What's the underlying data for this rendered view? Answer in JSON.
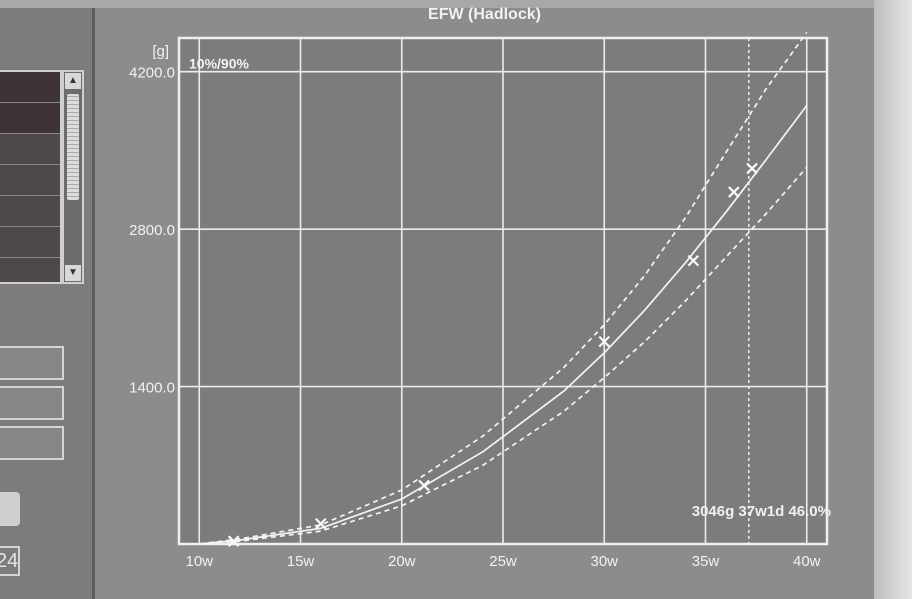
{
  "window": {
    "title": "EFW (Hadlock)"
  },
  "left_panel": {
    "value_field": "24"
  },
  "chart_data": {
    "type": "line",
    "title": "EFW (Hadlock)",
    "ylabel": "[g]",
    "xlabel": "",
    "xlim": [
      9,
      41
    ],
    "ylim": [
      0,
      4500
    ],
    "y_ticks": [
      1400,
      2800,
      4200
    ],
    "y_tick_labels": [
      "1400.0",
      "2800.0",
      "4200.0"
    ],
    "x_ticks": [
      10,
      15,
      20,
      25,
      30,
      35,
      40
    ],
    "x_tick_labels": [
      "10w",
      "15w",
      "20w",
      "25w",
      "30w",
      "35w",
      "40w"
    ],
    "grid": true,
    "percentile_label": "10%/90%",
    "series": [
      {
        "style": "dashed",
        "x": [
          10,
          12,
          16,
          20,
          24,
          28,
          30,
          32,
          34,
          36,
          38,
          40
        ],
        "values": [
          0,
          45,
          170,
          480,
          960,
          1570,
          1950,
          2390,
          2900,
          3480,
          4050,
          4550
        ]
      },
      {
        "style": "solid",
        "x": [
          10,
          12,
          16,
          20,
          24,
          28,
          30,
          32,
          34,
          36,
          38,
          40
        ],
        "values": [
          0,
          35,
          140,
          400,
          820,
          1360,
          1700,
          2080,
          2500,
          2950,
          3420,
          3900
        ]
      },
      {
        "style": "dashed",
        "x": [
          10,
          12,
          16,
          20,
          24,
          28,
          30,
          32,
          34,
          36,
          38,
          40
        ],
        "values": [
          0,
          25,
          115,
          340,
          700,
          1180,
          1480,
          1800,
          2160,
          2550,
          2940,
          3350
        ]
      }
    ],
    "measurements": {
      "x": [
        11.7,
        16.0,
        21.1,
        30.0,
        34.4,
        36.4,
        37.3
      ],
      "values": [
        25,
        180,
        520,
        1800,
        2520,
        3130,
        3340
      ]
    },
    "current_marker": {
      "x": 37.14
    },
    "annotation": "3046g 37w1d 46.0%"
  }
}
